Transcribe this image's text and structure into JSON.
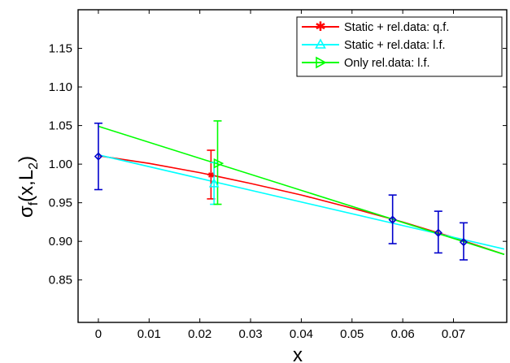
{
  "chart_data": {
    "type": "line",
    "title": "",
    "xlabel": "x",
    "ylabel_main": "σ",
    "ylabel_sub1": "f",
    "ylabel_mid": "(x,L",
    "ylabel_sub2": "2",
    "ylabel_end": ")",
    "xlim": [
      -0.004,
      0.0805
    ],
    "ylim": [
      0.795,
      1.2
    ],
    "xticks": [
      0,
      0.01,
      0.02,
      0.03,
      0.04,
      0.05,
      0.06,
      0.07
    ],
    "xtick_labels": [
      "0",
      "0.01",
      "0.02",
      "0.03",
      "0.04",
      "0.05",
      "0.06",
      "0.07"
    ],
    "yticks": [
      0.85,
      0.9,
      0.95,
      1.0,
      1.05,
      1.1,
      1.15
    ],
    "ytick_labels": [
      "0.85",
      "0.90",
      "0.95",
      "1.00",
      "1.05",
      "1.10",
      "1.15"
    ],
    "legend_position": "top-right",
    "series": [
      {
        "name": "Static + rel.data: q.f.",
        "color": "#ff0000",
        "marker": "star",
        "curve_x": [
          0,
          0.01,
          0.02,
          0.03,
          0.04,
          0.05,
          0.06,
          0.07,
          0.08
        ],
        "curve_y": [
          1.011,
          1.001,
          0.989,
          0.975,
          0.96,
          0.943,
          0.925,
          0.905,
          0.883
        ],
        "point": {
          "x": 0.0222,
          "y": 0.986,
          "err_low": 0.955,
          "err_high": 1.018
        }
      },
      {
        "name": "Static + rel.data: l.f.",
        "color": "#00ffff",
        "marker": "triangle-up",
        "curve_x": [
          0,
          0.08
        ],
        "curve_y": [
          1.012,
          0.89
        ],
        "point": {
          "x": 0.0228,
          "y": 0.975,
          "err_low": 0.948,
          "err_high": 1.002
        }
      },
      {
        "name": "Only rel.data: l.f.",
        "color": "#00ff00",
        "marker": "triangle-right",
        "curve_x": [
          0,
          0.08
        ],
        "curve_y": [
          1.049,
          0.883
        ],
        "point": {
          "x": 0.0235,
          "y": 1.001,
          "err_low": 0.948,
          "err_high": 1.056
        }
      },
      {
        "name": "data",
        "color": "#0000cc",
        "marker": "diamond",
        "in_legend": false,
        "points": [
          {
            "x": 0.0,
            "y": 1.01,
            "err_low": 0.967,
            "err_high": 1.053
          },
          {
            "x": 0.058,
            "y": 0.928,
            "err_low": 0.897,
            "err_high": 0.96
          },
          {
            "x": 0.067,
            "y": 0.911,
            "err_low": 0.885,
            "err_high": 0.939
          },
          {
            "x": 0.072,
            "y": 0.899,
            "err_low": 0.876,
            "err_high": 0.924
          }
        ]
      }
    ]
  }
}
